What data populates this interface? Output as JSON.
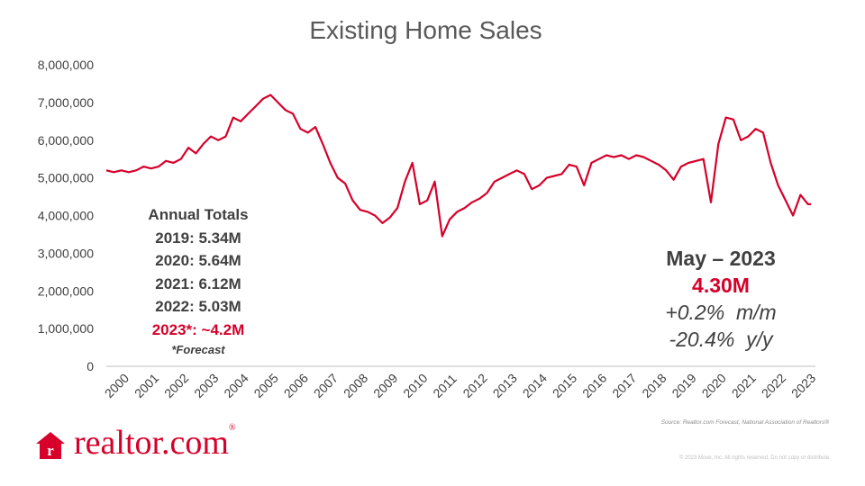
{
  "chart_data": {
    "type": "line",
    "title": "Existing Home Sales",
    "y_ticks": [
      "8,000,000",
      "7,000,000",
      "6,000,000",
      "5,000,000",
      "4,000,000",
      "3,000,000",
      "2,000,000",
      "1,000,000",
      "0"
    ],
    "x_ticks": [
      "2000",
      "2001",
      "2002",
      "2003",
      "2004",
      "2005",
      "2006",
      "2007",
      "2008",
      "2009",
      "2010",
      "2011",
      "2012",
      "2013",
      "2014",
      "2015",
      "2016",
      "2017",
      "2018",
      "2019",
      "2020",
      "2021",
      "2022",
      "2023"
    ],
    "ylim": [
      0,
      8000000
    ],
    "xlim": [
      2000,
      2023.75
    ],
    "grid": false,
    "series": [
      {
        "color": "#d6002a",
        "points": [
          [
            2000.0,
            5200000
          ],
          [
            2000.25,
            5150000
          ],
          [
            2000.5,
            5200000
          ],
          [
            2000.75,
            5150000
          ],
          [
            2001.0,
            5200000
          ],
          [
            2001.25,
            5300000
          ],
          [
            2001.5,
            5250000
          ],
          [
            2001.75,
            5300000
          ],
          [
            2002.0,
            5450000
          ],
          [
            2002.25,
            5400000
          ],
          [
            2002.5,
            5500000
          ],
          [
            2002.75,
            5800000
          ],
          [
            2003.0,
            5650000
          ],
          [
            2003.25,
            5900000
          ],
          [
            2003.5,
            6100000
          ],
          [
            2003.75,
            6000000
          ],
          [
            2004.0,
            6100000
          ],
          [
            2004.25,
            6600000
          ],
          [
            2004.5,
            6500000
          ],
          [
            2004.75,
            6700000
          ],
          [
            2005.0,
            6900000
          ],
          [
            2005.25,
            7100000
          ],
          [
            2005.5,
            7200000
          ],
          [
            2005.75,
            7000000
          ],
          [
            2006.0,
            6800000
          ],
          [
            2006.25,
            6700000
          ],
          [
            2006.5,
            6300000
          ],
          [
            2006.75,
            6200000
          ],
          [
            2007.0,
            6350000
          ],
          [
            2007.25,
            5900000
          ],
          [
            2007.5,
            5400000
          ],
          [
            2007.75,
            5000000
          ],
          [
            2008.0,
            4850000
          ],
          [
            2008.25,
            4400000
          ],
          [
            2008.5,
            4150000
          ],
          [
            2008.75,
            4100000
          ],
          [
            2009.0,
            4000000
          ],
          [
            2009.25,
            3800000
          ],
          [
            2009.5,
            3950000
          ],
          [
            2009.75,
            4200000
          ],
          [
            2010.0,
            4900000
          ],
          [
            2010.25,
            5400000
          ],
          [
            2010.5,
            4300000
          ],
          [
            2010.75,
            4400000
          ],
          [
            2011.0,
            4900000
          ],
          [
            2011.25,
            3450000
          ],
          [
            2011.5,
            3900000
          ],
          [
            2011.75,
            4100000
          ],
          [
            2012.0,
            4200000
          ],
          [
            2012.25,
            4350000
          ],
          [
            2012.5,
            4450000
          ],
          [
            2012.75,
            4600000
          ],
          [
            2013.0,
            4900000
          ],
          [
            2013.25,
            5000000
          ],
          [
            2013.5,
            5100000
          ],
          [
            2013.75,
            5200000
          ],
          [
            2014.0,
            5100000
          ],
          [
            2014.25,
            4700000
          ],
          [
            2014.5,
            4800000
          ],
          [
            2014.75,
            5000000
          ],
          [
            2015.0,
            5050000
          ],
          [
            2015.25,
            5100000
          ],
          [
            2015.5,
            5350000
          ],
          [
            2015.75,
            5300000
          ],
          [
            2016.0,
            4800000
          ],
          [
            2016.25,
            5400000
          ],
          [
            2016.5,
            5500000
          ],
          [
            2016.75,
            5600000
          ],
          [
            2017.0,
            5550000
          ],
          [
            2017.25,
            5600000
          ],
          [
            2017.5,
            5500000
          ],
          [
            2017.75,
            5600000
          ],
          [
            2018.0,
            5550000
          ],
          [
            2018.25,
            5450000
          ],
          [
            2018.5,
            5350000
          ],
          [
            2018.75,
            5200000
          ],
          [
            2019.0,
            4950000
          ],
          [
            2019.25,
            5300000
          ],
          [
            2019.5,
            5400000
          ],
          [
            2019.75,
            5450000
          ],
          [
            2020.0,
            5500000
          ],
          [
            2020.25,
            4350000
          ],
          [
            2020.5,
            5900000
          ],
          [
            2020.75,
            6600000
          ],
          [
            2021.0,
            6550000
          ],
          [
            2021.25,
            6000000
          ],
          [
            2021.5,
            6100000
          ],
          [
            2021.75,
            6300000
          ],
          [
            2022.0,
            6200000
          ],
          [
            2022.25,
            5400000
          ],
          [
            2022.5,
            4800000
          ],
          [
            2022.75,
            4400000
          ],
          [
            2023.0,
            4000000
          ],
          [
            2023.25,
            4550000
          ],
          [
            2023.5,
            4300000
          ],
          [
            2023.6,
            4300000
          ]
        ]
      }
    ]
  },
  "annual_totals": {
    "heading": "Annual Totals",
    "rows": [
      "2019: 5.34M",
      "2020: 5.64M",
      "2021: 6.12M",
      "2022: 5.03M"
    ],
    "forecast_row": "2023*: ~4.2M",
    "footnote": "*Forecast"
  },
  "callout": {
    "month": "May – 2023",
    "value": "4.30M",
    "mom": "+0.2%  m/m",
    "yoy": "-20.4%  y/y"
  },
  "source": "Source:  Realtor.com Forecast,  National Association of Realtors®",
  "copyright": "© 2023 Move, Inc. All rights reserved. Do not copy or distribute.",
  "logo": {
    "text": "realtor.com",
    "mark": "®",
    "icon_name": "house-r-icon",
    "color": "#d6002a"
  }
}
